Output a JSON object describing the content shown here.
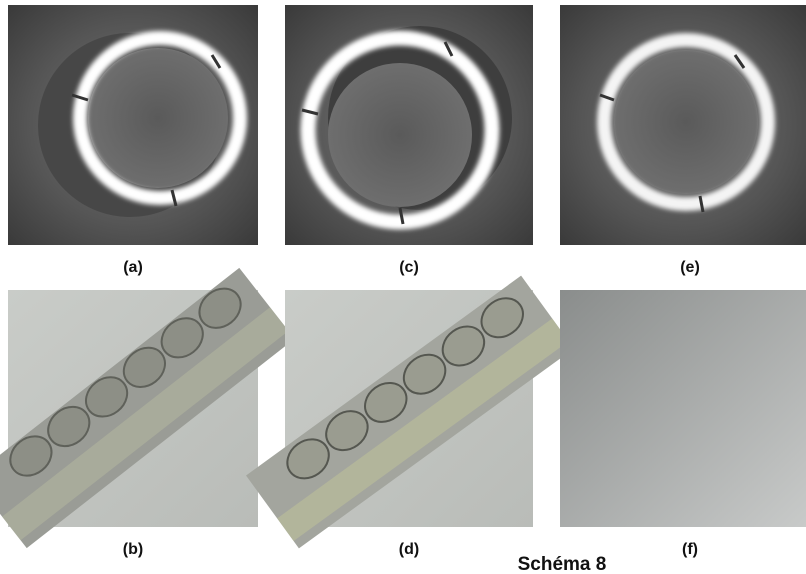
{
  "panels": [
    {
      "label": "(a)"
    },
    {
      "label": "(c)"
    },
    {
      "label": "(e)"
    },
    {
      "label": "(b)"
    },
    {
      "label": "(d)"
    },
    {
      "label": "(f)"
    }
  ],
  "caption": "Schéma 8"
}
